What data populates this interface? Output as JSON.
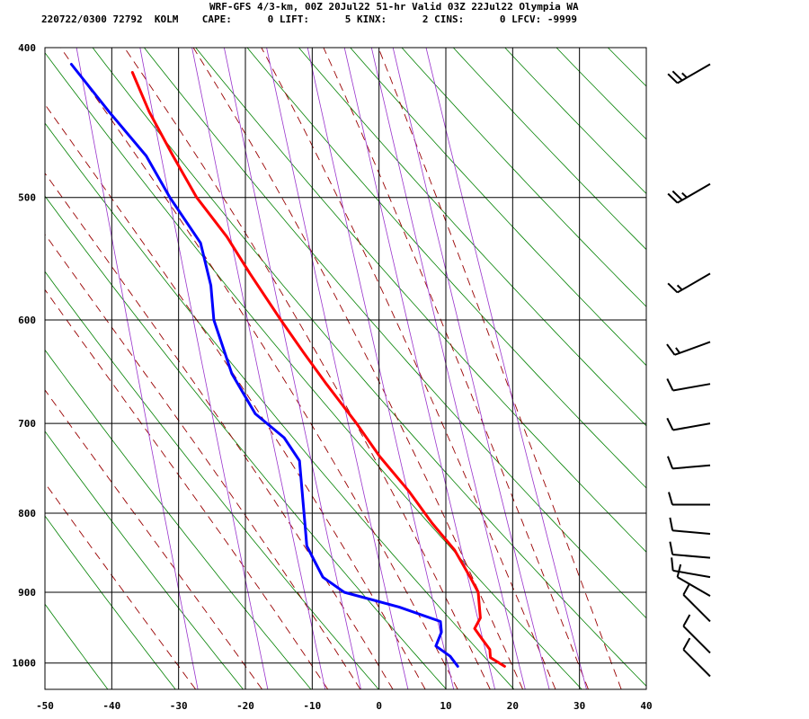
{
  "header": {
    "line1": "WRF-GFS 4/3-km, 00Z 20Jul22 51-hr Valid 03Z 22Jul22 Olympia WA",
    "line2": "220722/0300 72792  KOLM    CAPE:      0 LIFT:      5 KINX:      2 CINS:      0 LFCV: -9999"
  },
  "chart_data": {
    "type": "line",
    "subtype": "skew-T log-P sounding",
    "title": "WRF-GFS 4/3-km, 00Z 20Jul22 51-hr Valid 03Z 22Jul22 Olympia WA",
    "station": "KOLM",
    "station_id": "72792",
    "valid": "220722/0300",
    "indices": {
      "CAPE": 0,
      "LIFT": 5,
      "KINX": 2,
      "CINS": 0,
      "LFCV": -9999
    },
    "x_ticks": [
      -50,
      -40,
      -30,
      -20,
      -10,
      0,
      10,
      20,
      30,
      40
    ],
    "y_ticks": [
      400,
      500,
      600,
      700,
      800,
      900,
      1000
    ],
    "xlim": [
      -50,
      40
    ],
    "ylim": [
      1040,
      400
    ],
    "y_scale": "log",
    "grid": true,
    "series": [
      {
        "color": "#ff0000",
        "points": [
          [
            1005,
            19
          ],
          [
            992,
            17
          ],
          [
            980,
            17
          ],
          [
            965,
            16
          ],
          [
            950,
            15
          ],
          [
            935,
            16
          ],
          [
            915,
            16
          ],
          [
            900,
            16
          ],
          [
            880,
            15
          ],
          [
            845,
            13
          ],
          [
            812,
            10
          ],
          [
            775,
            7
          ],
          [
            735,
            3
          ],
          [
            700,
            0
          ],
          [
            660,
            -4
          ],
          [
            630,
            -7
          ],
          [
            600,
            -10
          ],
          [
            560,
            -14
          ],
          [
            530,
            -17
          ],
          [
            500,
            -21
          ],
          [
            470,
            -24
          ],
          [
            440,
            -27
          ],
          [
            415,
            -29
          ]
        ]
      },
      {
        "color": "#0000ff",
        "points": [
          [
            1005,
            12
          ],
          [
            990,
            11
          ],
          [
            975,
            9
          ],
          [
            955,
            10
          ],
          [
            940,
            10
          ],
          [
            920,
            4
          ],
          [
            900,
            -4
          ],
          [
            880,
            -7
          ],
          [
            860,
            -8
          ],
          [
            840,
            -9
          ],
          [
            815,
            -9
          ],
          [
            790,
            -9
          ],
          [
            760,
            -9
          ],
          [
            740,
            -9
          ],
          [
            715,
            -11
          ],
          [
            690,
            -15
          ],
          [
            650,
            -18
          ],
          [
            600,
            -20
          ],
          [
            570,
            -20
          ],
          [
            535,
            -21
          ],
          [
            500,
            -25
          ],
          [
            470,
            -28
          ],
          [
            440,
            -33
          ],
          [
            410,
            -38
          ]
        ]
      }
    ],
    "background_lines": {
      "dry_adiabat_color": "#008000",
      "moist_adiabat_color": "#990000",
      "mixing_ratio_color": "#9933cc"
    },
    "wind_barbs": [
      {
        "p": 410,
        "dir": 240,
        "speed": 25
      },
      {
        "p": 490,
        "dir": 240,
        "speed": 25
      },
      {
        "p": 560,
        "dir": 240,
        "speed": 15
      },
      {
        "p": 620,
        "dir": 250,
        "speed": 15
      },
      {
        "p": 660,
        "dir": 260,
        "speed": 10
      },
      {
        "p": 700,
        "dir": 260,
        "speed": 10
      },
      {
        "p": 745,
        "dir": 265,
        "speed": 10
      },
      {
        "p": 790,
        "dir": 270,
        "speed": 10
      },
      {
        "p": 825,
        "dir": 275,
        "speed": 10
      },
      {
        "p": 855,
        "dir": 275,
        "speed": 10
      },
      {
        "p": 880,
        "dir": 280,
        "speed": 10
      },
      {
        "p": 905,
        "dir": 300,
        "speed": 10
      },
      {
        "p": 940,
        "dir": 315,
        "speed": 10
      },
      {
        "p": 985,
        "dir": 315,
        "speed": 10
      },
      {
        "p": 1020,
        "dir": 315,
        "speed": 10
      }
    ]
  }
}
